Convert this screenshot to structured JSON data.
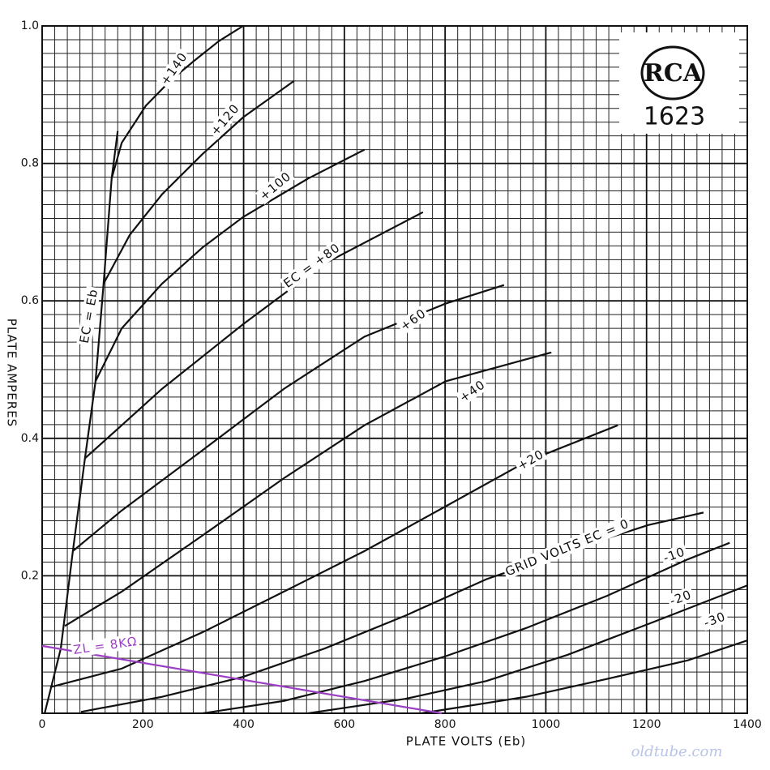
{
  "chart_data": {
    "type": "line",
    "x_label": "PLATE VOLTS (Eb)",
    "y_label": "PLATE AMPERES",
    "xlim": [
      0,
      1400
    ],
    "ylim": [
      0,
      1
    ],
    "xticks": [
      0,
      200,
      400,
      600,
      800,
      1000,
      1200,
      1400
    ],
    "yticks": [
      0.2,
      0.4,
      0.6,
      0.8,
      {
        "value": 1,
        "label": "1.0"
      }
    ],
    "grid": true,
    "series": [
      {
        "name": "EC = Eb",
        "color": "#111111",
        "x": [
          5,
          37,
          61,
          85,
          106,
          122,
          138,
          150
        ],
        "values": [
          0,
          0.094,
          0.236,
          0.371,
          0.483,
          0.625,
          0.778,
          0.847
        ]
      },
      {
        "name": "+140",
        "color": "#111111",
        "x": [
          138,
          158,
          206,
          254,
          303,
          351,
          399
        ],
        "values": [
          0.778,
          0.83,
          0.884,
          0.92,
          0.95,
          0.978,
          1.0
        ]
      },
      {
        "name": "+120",
        "color": "#111111",
        "x": [
          122,
          174,
          238,
          319,
          399,
          500
        ],
        "values": [
          0.625,
          0.696,
          0.755,
          0.814,
          0.867,
          0.92
        ]
      },
      {
        "name": "+100",
        "color": "#111111",
        "x": [
          106,
          158,
          238,
          319,
          399,
          528,
          640
        ],
        "values": [
          0.483,
          0.56,
          0.625,
          0.678,
          0.722,
          0.778,
          0.82
        ]
      },
      {
        "name": "EC = +80",
        "color": "#111111",
        "x": [
          85,
          158,
          238,
          399,
          560,
          756
        ],
        "values": [
          0.371,
          0.419,
          0.472,
          0.566,
          0.654,
          0.729
        ]
      },
      {
        "name": "+60",
        "color": "#111111",
        "x": [
          61,
          158,
          319,
          480,
          640,
          801,
          917
        ],
        "values": [
          0.236,
          0.295,
          0.383,
          0.472,
          0.548,
          0.596,
          0.623
        ]
      },
      {
        "name": "+40",
        "color": "#111111",
        "x": [
          45,
          158,
          319,
          480,
          640,
          801,
          1011
        ],
        "values": [
          0.127,
          0.177,
          0.259,
          0.342,
          0.419,
          0.483,
          0.525
        ]
      },
      {
        "name": "+20",
        "color": "#111111",
        "x": [
          16,
          158,
          319,
          480,
          640,
          801,
          961,
          1143
        ],
        "values": [
          0.038,
          0.065,
          0.118,
          0.177,
          0.236,
          0.301,
          0.366,
          0.419
        ]
      },
      {
        "name": "GRID VOLTS EC = 0",
        "color": "#111111",
        "x": [
          77,
          238,
          399,
          560,
          721,
          882,
          1043,
          1204,
          1313
        ],
        "values": [
          0.002,
          0.024,
          0.053,
          0.094,
          0.142,
          0.195,
          0.236,
          0.274,
          0.292
        ]
      },
      {
        "name": "-10",
        "color": "#111111",
        "x": [
          319,
          480,
          640,
          801,
          961,
          1122,
          1282,
          1365
        ],
        "values": [
          0,
          0.018,
          0.047,
          0.083,
          0.124,
          0.171,
          0.224,
          0.248
        ]
      },
      {
        "name": "-20",
        "color": "#111111",
        "x": [
          528,
          721,
          882,
          1043,
          1204,
          1400
        ],
        "values": [
          0,
          0.021,
          0.047,
          0.085,
          0.13,
          0.186
        ]
      },
      {
        "name": "-30",
        "color": "#111111",
        "x": [
          753,
          961,
          1122,
          1282,
          1400
        ],
        "values": [
          0,
          0.024,
          0.05,
          0.077,
          0.106
        ]
      },
      {
        "name": "ZL = 8KΩ",
        "color": "#9b3fc4",
        "x": [
          0,
          793
        ],
        "values": [
          0.098,
          0
        ]
      }
    ]
  },
  "logo": {
    "brand": "RCA",
    "model": "1623"
  },
  "watermark": "oldtube.com"
}
